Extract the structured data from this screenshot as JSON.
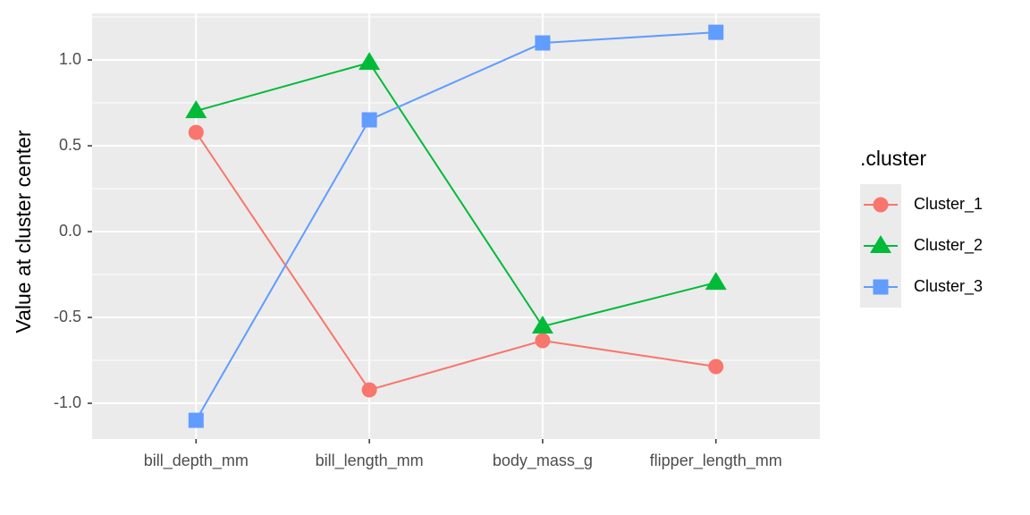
{
  "chart_data": {
    "type": "line",
    "y_label": "Value at cluster center",
    "categories": [
      "bill_depth_mm",
      "bill_length_mm",
      "body_mass_g",
      "flipper_length_mm"
    ],
    "series": [
      {
        "name": "Cluster_1",
        "color": "#F8766D",
        "marker": "circle",
        "values": [
          0.578,
          -0.922,
          -0.635,
          -0.786
        ]
      },
      {
        "name": "Cluster_2",
        "color": "#00BA38",
        "marker": "triangle",
        "values": [
          0.703,
          0.984,
          -0.552,
          -0.297
        ]
      },
      {
        "name": "Cluster_3",
        "color": "#619CFF",
        "marker": "square",
        "values": [
          -1.099,
          0.651,
          1.099,
          1.161
        ]
      }
    ],
    "ylim": [
      -1.208,
      1.271
    ],
    "yticks": [
      {
        "value": -1,
        "label": "-1.0"
      },
      {
        "value": -0.5,
        "label": "-0.5"
      },
      {
        "value": 0,
        "label": "0.0"
      },
      {
        "value": 0.5,
        "label": "0.5"
      },
      {
        "value": 1,
        "label": "1.0"
      }
    ],
    "grid": true,
    "legend_title": ".cluster",
    "legend_position": "right"
  }
}
